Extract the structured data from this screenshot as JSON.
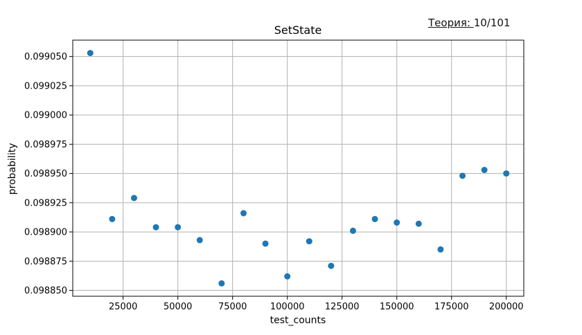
{
  "header": {
    "theory_label": "Теория: ",
    "theory_value": "10/101"
  },
  "chart_data": {
    "type": "scatter",
    "title": "SetState",
    "xlabel": "test_counts",
    "ylabel": "probability",
    "xlim": [
      2000,
      208000
    ],
    "ylim": [
      0.098845,
      0.099064
    ],
    "xticks": [
      25000,
      50000,
      75000,
      100000,
      125000,
      150000,
      175000,
      200000
    ],
    "yticks": [
      0.09885,
      0.098875,
      0.0989,
      0.098925,
      0.09895,
      0.098975,
      0.099,
      0.099025,
      0.09905
    ],
    "xtick_labels": [
      "25000",
      "50000",
      "75000",
      "100000",
      "125000",
      "150000",
      "175000",
      "200000"
    ],
    "ytick_labels": [
      "0.098850",
      "0.098875",
      "0.098900",
      "0.098925",
      "0.098950",
      "0.098975",
      "0.099000",
      "0.099025",
      "0.099050"
    ],
    "grid": true,
    "marker_color": "#1f77b4",
    "series": [
      {
        "name": "probability",
        "x": [
          10000,
          20000,
          30000,
          40000,
          50000,
          60000,
          70000,
          80000,
          90000,
          100000,
          110000,
          120000,
          130000,
          140000,
          150000,
          160000,
          170000,
          180000,
          190000,
          200000
        ],
        "y": [
          0.099053,
          0.098911,
          0.098929,
          0.098904,
          0.098904,
          0.098893,
          0.098856,
          0.098916,
          0.09889,
          0.098862,
          0.098892,
          0.098871,
          0.098901,
          0.098911,
          0.098908,
          0.098907,
          0.098885,
          0.098948,
          0.098953,
          0.09895
        ]
      }
    ]
  }
}
